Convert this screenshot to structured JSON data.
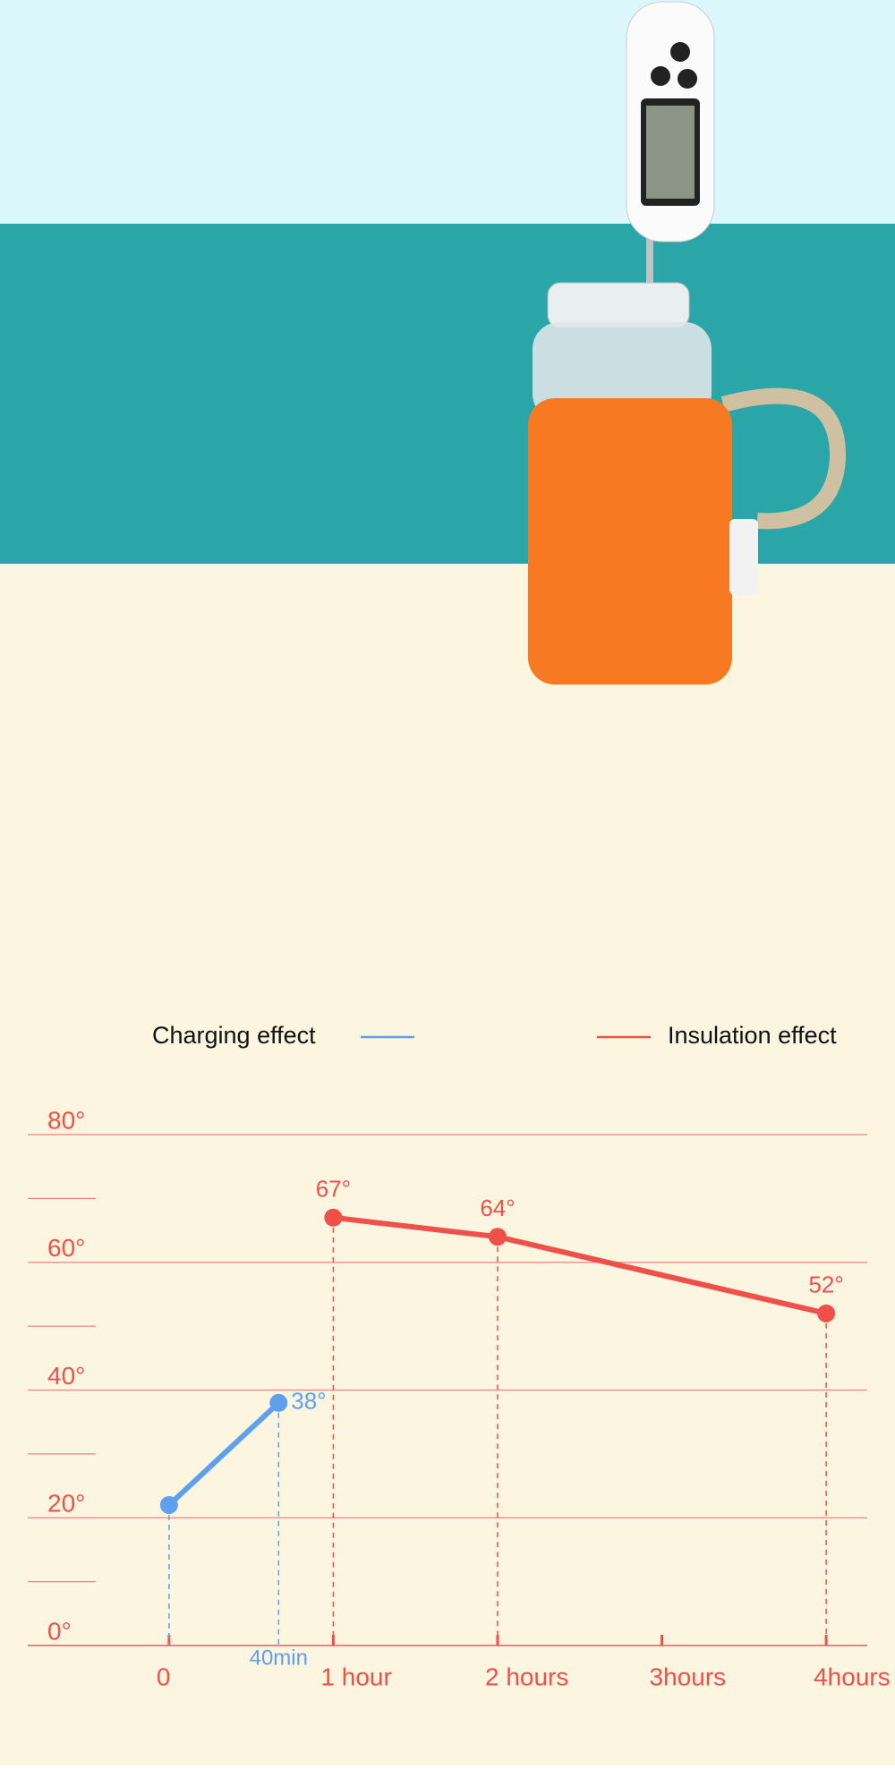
{
  "chart_data": {
    "type": "line",
    "legend": [
      "Charging effect",
      "Insulation effect"
    ],
    "series": [
      {
        "name": "Charging effect",
        "color": "#5fa0ee",
        "x": [
          0,
          0.667
        ],
        "values": [
          22,
          38
        ],
        "value_labels": [
          null,
          "38°"
        ]
      },
      {
        "name": "Insulation effect",
        "color": "#f0504a",
        "x": [
          1,
          2,
          4
        ],
        "values": [
          67,
          64,
          52
        ],
        "value_labels": [
          "67°",
          "64°",
          "52°"
        ]
      }
    ],
    "xlim": [
      -0.86,
      4.25
    ],
    "xticks": [
      0,
      {
        "value": 0.667,
        "label": "40min"
      },
      {
        "value": 1,
        "label": "1 hour"
      },
      {
        "value": 2,
        "label": "2 hours"
      },
      {
        "value": 3,
        "label": "3hours"
      },
      {
        "value": 4,
        "label": "4hours"
      }
    ],
    "ylim": [
      0,
      80
    ],
    "yticks": [
      {
        "value": 0,
        "label": "0°"
      },
      {
        "value": 20,
        "label": "20°"
      },
      {
        "value": 40,
        "label": "40°"
      },
      {
        "value": 60,
        "label": "60°"
      },
      {
        "value": 80,
        "label": "80°"
      }
    ],
    "minor_yticks": [
      10,
      30,
      50,
      70
    ],
    "grid": true
  }
}
